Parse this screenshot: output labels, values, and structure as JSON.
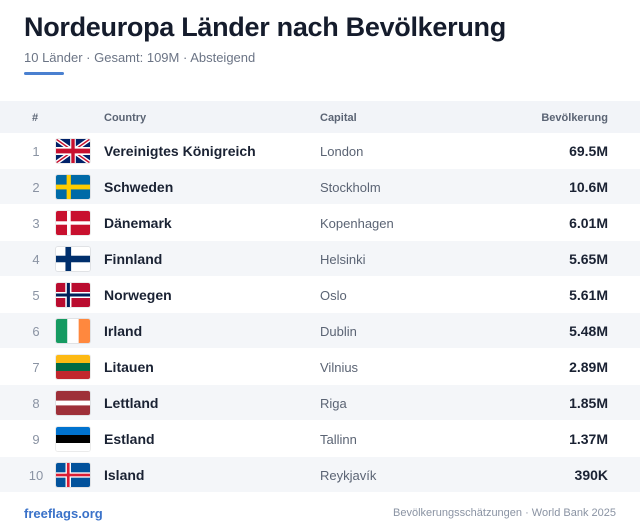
{
  "header": {
    "title": "Nordeuropa Länder nach Bevölkerung",
    "subtitle": "10 Länder · Gesamt: 109M · Absteigend",
    "accent_color": "#4a80d0"
  },
  "table": {
    "columns": {
      "num": "#",
      "country": "Country",
      "capital": "Capital",
      "population": "Bevölkerung"
    },
    "rows": [
      {
        "rank": "1",
        "country": "Vereinigtes Königreich",
        "capital": "London",
        "population": "69.5M",
        "flag": "uk-flag-icon"
      },
      {
        "rank": "2",
        "country": "Schweden",
        "capital": "Stockholm",
        "population": "10.6M",
        "flag": "sweden-flag-icon"
      },
      {
        "rank": "3",
        "country": "Dänemark",
        "capital": "Kopenhagen",
        "population": "6.01M",
        "flag": "denmark-flag-icon"
      },
      {
        "rank": "4",
        "country": "Finnland",
        "capital": "Helsinki",
        "population": "5.65M",
        "flag": "finland-flag-icon"
      },
      {
        "rank": "5",
        "country": "Norwegen",
        "capital": "Oslo",
        "population": "5.61M",
        "flag": "norway-flag-icon"
      },
      {
        "rank": "6",
        "country": "Irland",
        "capital": "Dublin",
        "population": "5.48M",
        "flag": "ireland-flag-icon"
      },
      {
        "rank": "7",
        "country": "Litauen",
        "capital": "Vilnius",
        "population": "2.89M",
        "flag": "lithuania-flag-icon"
      },
      {
        "rank": "8",
        "country": "Lettland",
        "capital": "Riga",
        "population": "1.85M",
        "flag": "latvia-flag-icon"
      },
      {
        "rank": "9",
        "country": "Estland",
        "capital": "Tallinn",
        "population": "1.37M",
        "flag": "estonia-flag-icon"
      },
      {
        "rank": "10",
        "country": "Island",
        "capital": "Reykjavík",
        "population": "390K",
        "flag": "iceland-flag-icon"
      }
    ]
  },
  "footer": {
    "brand": "freeflags.org",
    "source": "Bevölkerungsschätzungen · World Bank 2025",
    "brand_color": "#3a72c9"
  }
}
